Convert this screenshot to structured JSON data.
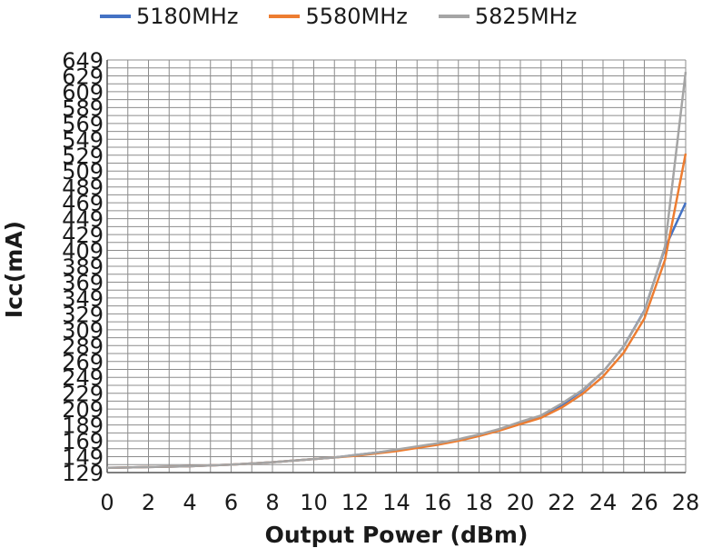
{
  "chart_data": {
    "type": "line",
    "xlabel": "Output Power (dBm)",
    "ylabel": "Icc(mA)",
    "xlim": [
      0,
      28
    ],
    "ylim": [
      129,
      649
    ],
    "x_ticks": [
      "0",
      "2",
      "4",
      "6",
      "8",
      "10",
      "12",
      "14",
      "16",
      "18",
      "20",
      "22",
      "24",
      "26",
      "28"
    ],
    "y_ticks": [
      "129",
      "149",
      "169",
      "189",
      "209",
      "229",
      "249",
      "269",
      "289",
      "309",
      "329",
      "349",
      "369",
      "389",
      "409",
      "429",
      "449",
      "469",
      "489",
      "509",
      "529",
      "549",
      "569",
      "589",
      "609",
      "629",
      "649"
    ],
    "legend_position": "top",
    "grid": true,
    "x": [
      0,
      1,
      2,
      3,
      4,
      5,
      6,
      7,
      8,
      9,
      10,
      11,
      12,
      13,
      14,
      15,
      16,
      17,
      18,
      19,
      20,
      21,
      22,
      23,
      24,
      25,
      26,
      27,
      28
    ],
    "series": [
      {
        "name": "5180MHz",
        "color": "#4472C4",
        "values": [
          135,
          135.5,
          136,
          136.5,
          137,
          138,
          139,
          140.5,
          142,
          144,
          146,
          148,
          151,
          154,
          157,
          161,
          165,
          170,
          176,
          183,
          192,
          200,
          214,
          232,
          256,
          288,
          333,
          412,
          469
        ]
      },
      {
        "name": "5580MHz",
        "color": "#ED7D31",
        "values": [
          135,
          135.5,
          136,
          136.5,
          137,
          138,
          139,
          140.5,
          142,
          144,
          146,
          148,
          150,
          153,
          156,
          160,
          164,
          169,
          175,
          182,
          190,
          198,
          211,
          228,
          250,
          280,
          323,
          397,
          531
        ]
      },
      {
        "name": "5825MHz",
        "color": "#A5A5A5",
        "values": [
          135,
          135.5,
          136,
          136.5,
          137,
          138,
          139,
          140.5,
          142,
          144,
          146,
          148,
          151,
          154,
          158,
          162,
          166,
          171,
          177,
          184,
          193,
          201,
          216,
          233,
          256,
          288,
          332,
          414,
          634
        ]
      }
    ]
  }
}
